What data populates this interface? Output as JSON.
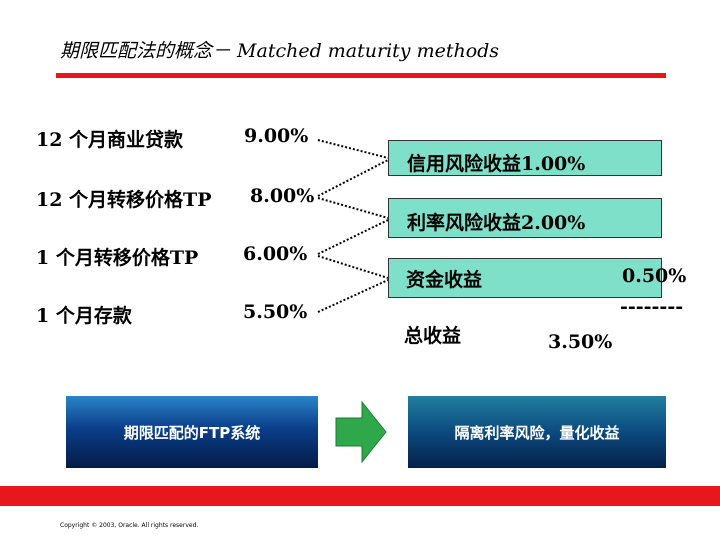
{
  "title": "期限匹配法的概念－ Matched maturity methods",
  "left_items": [
    {
      "label": "12 个月商业贷款",
      "value": "9.00%"
    },
    {
      "label": "12 个月转移价格TP",
      "value": "8.00%"
    },
    {
      "label": "1 个月转移价格TP",
      "value": "6.00%"
    },
    {
      "label": "1 个月存款",
      "value": "5.50%"
    }
  ],
  "right_items": {
    "credit_spread": "信用风险收益1.00%",
    "rate_spread": "利率风险收益2.00%",
    "funding_label": "资金收益",
    "funding_value": "0.50%",
    "separator": "--------",
    "total_label": "总收益",
    "total_value": "3.50%"
  },
  "bottom_boxes": {
    "ftp_label": "期限匹配的FTP系统",
    "isolate_label": "隔离利率风险，量化收益"
  },
  "colors": {
    "accent_red": "#e8171e",
    "box_fill": "#7fe0c9",
    "arrow_green": "#2ea84a"
  },
  "copyright": "Copyright © 2003, Oracle. All rights reserved."
}
